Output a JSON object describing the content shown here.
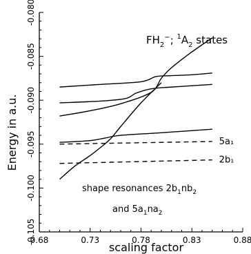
{
  "chart_data": {
    "type": "line",
    "title_parts": {
      "molecule": "FH",
      "sub": "2",
      "sup": "−",
      "sep": "; ",
      "state_sup": "1",
      "state": "A",
      "state_sub": "2",
      "tail": " states"
    },
    "xlabel": "scaling factor",
    "ylabel": "Energy in a.u.",
    "xlim": [
      0.68,
      0.88
    ],
    "ylim": [
      -0.105,
      -0.08
    ],
    "xticks": [
      "0.68",
      "0.73",
      "0.78",
      "0.83",
      "0.88"
    ],
    "yticks": [
      "-0.105",
      "-0.100",
      "-0.095",
      "-0.090",
      "-0.085",
      "-0.080"
    ],
    "annotation_line1_parts": {
      "text": "shape resonances 2b",
      "s1": "1",
      "mid": "nb",
      "s2": "2"
    },
    "annotation_line2_parts": {
      "pre": "and 5a",
      "s1": "1",
      "mid": "na",
      "s2": "2"
    },
    "series": [
      {
        "style": "solid",
        "x": [
          0.7,
          0.73,
          0.76,
          0.79,
          0.8,
          0.81,
          0.83,
          0.85
        ],
        "y": [
          -0.0918,
          -0.0912,
          -0.0904,
          -0.0891,
          -0.0875,
          -0.0863,
          -0.0845,
          -0.0829
        ]
      },
      {
        "style": "solid",
        "x": [
          0.7,
          0.74,
          0.78,
          0.795,
          0.81,
          0.83,
          0.85
        ],
        "y": [
          -0.0885,
          -0.0882,
          -0.0879,
          -0.0873,
          -0.0872,
          -0.0871,
          -0.0869
        ]
      },
      {
        "style": "solid",
        "x": [
          0.7,
          0.74,
          0.765,
          0.775,
          0.79,
          0.81,
          0.85
        ],
        "y": [
          -0.0903,
          -0.0901,
          -0.0898,
          -0.0892,
          -0.0887,
          -0.0885,
          -0.0882
        ]
      },
      {
        "style": "solid",
        "x": [
          0.7,
          0.73,
          0.745,
          0.76,
          0.8,
          0.85
        ],
        "y": [
          -0.0948,
          -0.0946,
          -0.0943,
          -0.094,
          -0.0937,
          -0.0933
        ]
      },
      {
        "style": "solid",
        "x": [
          0.7,
          0.715,
          0.73,
          0.74,
          0.75,
          0.76,
          0.78,
          0.8
        ],
        "y": [
          -0.099,
          -0.0975,
          -0.0963,
          -0.0954,
          -0.0944,
          -0.093,
          -0.0903,
          -0.088
        ]
      },
      {
        "style": "dashed",
        "label": "5a₁",
        "x": [
          0.7,
          0.85
        ],
        "y": [
          -0.095,
          -0.0947
        ]
      },
      {
        "style": "dashed",
        "label": "2b₁",
        "x": [
          0.7,
          0.85
        ],
        "y": [
          -0.0972,
          -0.0968
        ]
      }
    ]
  }
}
